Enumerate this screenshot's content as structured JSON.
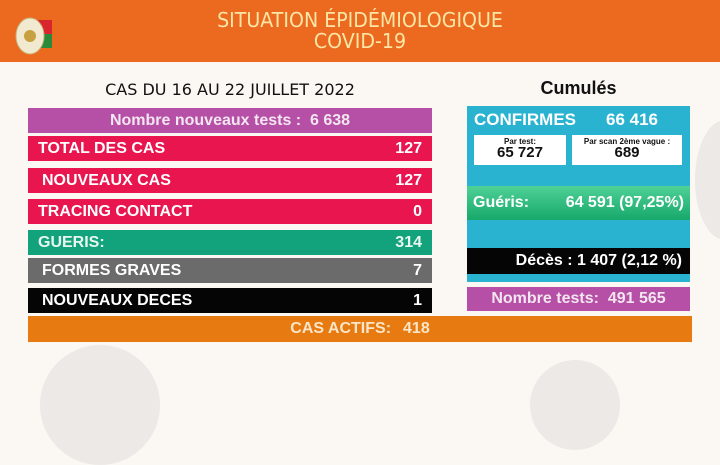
{
  "header": {
    "title_line1": "SITUATION ÉPIDÉMIOLOGIQUE",
    "title_line2": "COVID-19",
    "logo": "madagascar-flag-seal"
  },
  "period": "CAS DU  16  AU 22 JUILLET 2022",
  "weekly": {
    "tests": {
      "label": "Nombre nouveaux tests :",
      "value": "6 638"
    },
    "rows": [
      {
        "label": "TOTAL DES CAS",
        "value": "127"
      },
      {
        "label": "NOUVEAUX CAS",
        "value": "127"
      },
      {
        "label": "TRACING CONTACT",
        "value": "0"
      },
      {
        "label": "GUERIS:",
        "value": "314"
      },
      {
        "label": "FORMES GRAVES",
        "value": "7"
      },
      {
        "label": "NOUVEAUX DECES",
        "value": "1"
      }
    ],
    "actifs": {
      "label": "CAS ACTIFS:",
      "value": "418"
    }
  },
  "cumul": {
    "title": "Cumulés",
    "confirmes": {
      "label": "CONFIRMES",
      "value": "66 416"
    },
    "par_test": {
      "label": "Par test:",
      "value": "65 727"
    },
    "par_scan": {
      "label": "Par scan 2ème vague :",
      "value": "689"
    },
    "gueris": {
      "label": "Guéris:",
      "value": "64 591 (97,25%)"
    },
    "deces": {
      "text": "Décès : 1 407 (2,12 %)"
    },
    "tests": {
      "label": "Nombre tests:",
      "value": "491 565"
    }
  },
  "colors": {
    "header": "#ec6a1f",
    "pink": "#e8154f",
    "magenta": "#b64fa6",
    "green": "#12a37d",
    "grey": "#6b6b6b",
    "cyan": "#2ab3d0",
    "orange": "#e77a10"
  }
}
